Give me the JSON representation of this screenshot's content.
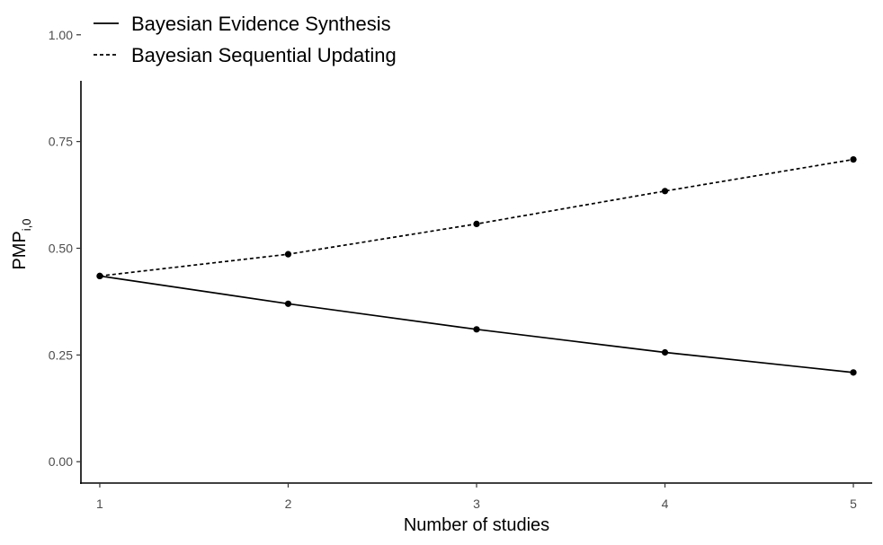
{
  "chart_data": {
    "type": "line",
    "xlabel": "Number of studies",
    "ylabel": {
      "main": "PMP",
      "subscript": "i,0"
    },
    "x": [
      1,
      2,
      3,
      4,
      5
    ],
    "xlim": [
      0.9,
      5.1
    ],
    "ylim": [
      -0.05,
      1.05
    ],
    "xticks": [
      "1",
      "2",
      "3",
      "4",
      "5"
    ],
    "yticks": [
      "0.00",
      "0.25",
      "0.50",
      "0.75",
      "1.00"
    ],
    "grid": false,
    "legend_position": "top-left",
    "series": [
      {
        "name": "Bayesian Evidence Synthesis",
        "line_style": "solid",
        "color": "#000000",
        "values": [
          0.435,
          0.37,
          0.31,
          0.256,
          0.209
        ]
      },
      {
        "name": "Bayesian Sequential Updating",
        "line_style": "dotted",
        "color": "#000000",
        "values": [
          0.435,
          0.486,
          0.557,
          0.634,
          0.708
        ]
      }
    ]
  }
}
